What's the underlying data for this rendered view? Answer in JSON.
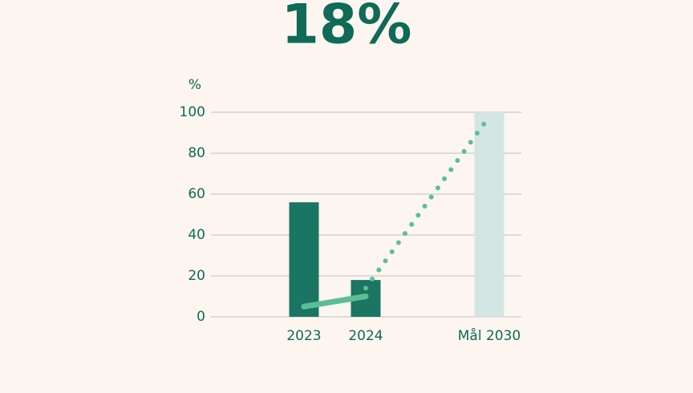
{
  "chart_data": {
    "type": "bar",
    "title": "18%",
    "y_label": "%",
    "categories": [
      "2023",
      "2024",
      null,
      "Mål 2030"
    ],
    "values": [
      56,
      18,
      null,
      100
    ],
    "colors": [
      "#1b7563",
      "#1b7563",
      null,
      "#d3e6e3"
    ],
    "series": [
      {
        "color": "#5cbf94",
        "style": "solid",
        "values": [
          5,
          10,
          null,
          null
        ]
      },
      {
        "color": "#5cbf94",
        "style": "dotted",
        "values": [
          null,
          14,
          56,
          98
        ]
      }
    ],
    "ylim": [
      0,
      100
    ],
    "yticks": [
      0,
      20,
      40,
      60,
      80,
      100
    ],
    "grid": true
  }
}
